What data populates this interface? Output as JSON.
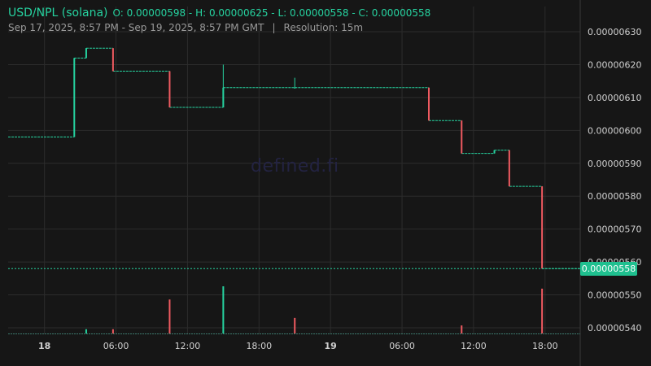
{
  "header": {
    "pair": "USD/NPL (solana)",
    "ohlc": "O: 0.00000598 - H: 0.00000625 - L: 0.00000558 - C: 0.00000558",
    "range": "Sep 17, 2025, 8:57 PM - Sep 19, 2025, 8:57 PM GMT",
    "separator": "|",
    "resolution": "Resolution: 15m"
  },
  "watermark": "defined.fi",
  "last_price_label": "0.00000558",
  "colors": {
    "background": "#161616",
    "up": "#26d3a0",
    "down": "#ef5a60",
    "grid": "#2c2c2c",
    "axis_text": "#d0d0d0",
    "last_price_line": "#26d3a0"
  },
  "chart_data": {
    "type": "candlestick",
    "resolution": "15m",
    "last_price": 5.58e-06,
    "y_axis": {
      "ylim": [
        5.385e-06,
        6.375e-06
      ],
      "ticks": [
        5.4e-06,
        5.5e-06,
        5.6e-06,
        5.7e-06,
        5.8e-06,
        5.9e-06,
        6e-06,
        6.1e-06,
        6.2e-06,
        6.3e-06
      ],
      "tick_labels": [
        "0.00000540",
        "0.00000550",
        "0.00000560",
        "0.00000570",
        "0.00000580",
        "0.00000590",
        "0.00000600",
        "0.00000610",
        "0.00000620",
        "0.00000630"
      ],
      "position": "right"
    },
    "x_axis": {
      "xlim": [
        "2025-09-17T20:57:00Z",
        "2025-09-19T20:57:00Z"
      ],
      "ticks": [
        "2025-09-18T00:00:00Z",
        "2025-09-18T06:00:00Z",
        "2025-09-18T12:00:00Z",
        "2025-09-18T18:00:00Z",
        "2025-09-19T00:00:00Z",
        "2025-09-19T06:00:00Z",
        "2025-09-19T12:00:00Z",
        "2025-09-19T18:00:00Z"
      ],
      "tick_labels": [
        "18",
        "06:00",
        "12:00",
        "18:00",
        "19",
        "06:00",
        "12:00",
        "18:00"
      ],
      "bold_ticks": [
        "18",
        "19"
      ]
    },
    "grid": true,
    "steps": [
      {
        "start": "2025-09-17T20:57:00Z",
        "end": "2025-09-18T02:30:00Z",
        "price": 5.98e-06
      },
      {
        "start": "2025-09-18T02:30:00Z",
        "end": "2025-09-18T03:30:00Z",
        "price": 6.22e-06
      },
      {
        "start": "2025-09-18T03:30:00Z",
        "end": "2025-09-18T05:45:00Z",
        "price": 6.25e-06
      },
      {
        "start": "2025-09-18T05:45:00Z",
        "end": "2025-09-18T10:30:00Z",
        "price": 6.18e-06
      },
      {
        "start": "2025-09-18T10:30:00Z",
        "end": "2025-09-18T15:00:00Z",
        "price": 6.07e-06
      },
      {
        "start": "2025-09-18T15:00:00Z",
        "end": "2025-09-19T08:15:00Z",
        "price": 6.13e-06
      },
      {
        "start": "2025-09-19T08:15:00Z",
        "end": "2025-09-19T11:00:00Z",
        "price": 6.03e-06
      },
      {
        "start": "2025-09-19T11:00:00Z",
        "end": "2025-09-19T13:45:00Z",
        "price": 5.93e-06
      },
      {
        "start": "2025-09-19T13:45:00Z",
        "end": "2025-09-19T15:00:00Z",
        "price": 5.94e-06
      },
      {
        "start": "2025-09-19T15:00:00Z",
        "end": "2025-09-19T17:45:00Z",
        "price": 5.83e-06
      },
      {
        "start": "2025-09-19T17:45:00Z",
        "end": "2025-09-19T20:57:00Z",
        "price": 5.58e-06
      }
    ],
    "candles": [
      {
        "t": "2025-09-18T02:30:00Z",
        "o": 5.98e-06,
        "h": 6.22e-06,
        "l": 5.98e-06,
        "c": 6.22e-06
      },
      {
        "t": "2025-09-18T03:30:00Z",
        "o": 6.22e-06,
        "h": 6.25e-06,
        "l": 6.22e-06,
        "c": 6.25e-06
      },
      {
        "t": "2025-09-18T05:45:00Z",
        "o": 6.25e-06,
        "h": 6.25e-06,
        "l": 6.18e-06,
        "c": 6.18e-06
      },
      {
        "t": "2025-09-18T10:30:00Z",
        "o": 6.18e-06,
        "h": 6.18e-06,
        "l": 6.07e-06,
        "c": 6.07e-06
      },
      {
        "t": "2025-09-18T15:00:00Z",
        "o": 6.07e-06,
        "h": 6.2e-06,
        "l": 6.07e-06,
        "c": 6.13e-06
      },
      {
        "t": "2025-09-18T21:00:00Z",
        "o": 6.13e-06,
        "h": 6.16e-06,
        "l": 6.13e-06,
        "c": 6.13e-06
      },
      {
        "t": "2025-09-19T08:15:00Z",
        "o": 6.13e-06,
        "h": 6.13e-06,
        "l": 6.03e-06,
        "c": 6.03e-06
      },
      {
        "t": "2025-09-19T11:00:00Z",
        "o": 6.03e-06,
        "h": 6.03e-06,
        "l": 5.93e-06,
        "c": 5.93e-06
      },
      {
        "t": "2025-09-19T13:45:00Z",
        "o": 5.93e-06,
        "h": 5.94e-06,
        "l": 5.93e-06,
        "c": 5.94e-06
      },
      {
        "t": "2025-09-19T15:00:00Z",
        "o": 5.94e-06,
        "h": 5.94e-06,
        "l": 5.83e-06,
        "c": 5.83e-06
      },
      {
        "t": "2025-09-19T17:45:00Z",
        "o": 5.83e-06,
        "h": 5.83e-06,
        "l": 5.58e-06,
        "c": 5.58e-06
      }
    ],
    "volume": {
      "relative": true,
      "bars": [
        {
          "t": "2025-09-18T03:30:00Z",
          "v": 0.09,
          "dir": "up"
        },
        {
          "t": "2025-09-18T05:45:00Z",
          "v": 0.09,
          "dir": "down"
        },
        {
          "t": "2025-09-18T10:30:00Z",
          "v": 0.72,
          "dir": "down"
        },
        {
          "t": "2025-09-18T15:00:00Z",
          "v": 1.0,
          "dir": "up"
        },
        {
          "t": "2025-09-18T21:00:00Z",
          "v": 0.33,
          "dir": "down"
        },
        {
          "t": "2025-09-19T11:00:00Z",
          "v": 0.17,
          "dir": "down"
        },
        {
          "t": "2025-09-19T17:45:00Z",
          "v": 0.95,
          "dir": "down"
        }
      ]
    }
  }
}
